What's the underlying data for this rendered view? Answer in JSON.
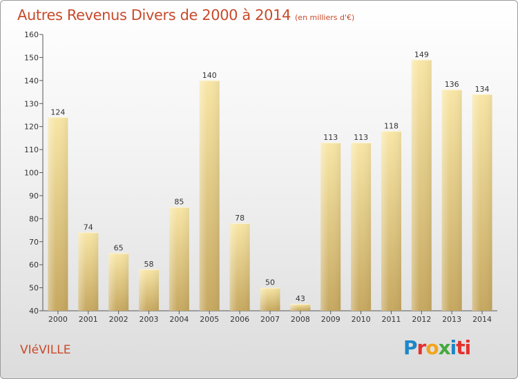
{
  "title": "Autres Revenus Divers de 2000 à 2014",
  "subtitle": "(en milliers d'€)",
  "commune": "VIéVILLE",
  "logo": [
    "P",
    "r",
    "o",
    "x",
    "i",
    "ti"
  ],
  "colors": {
    "bar_light": "#f7e3a0",
    "bar_dark": "#c9ab63",
    "title": "#c84a2a"
  },
  "chart_data": {
    "type": "bar",
    "title": "Autres Revenus Divers de 2000 à 2014",
    "categories": [
      "2000",
      "2001",
      "2002",
      "2003",
      "2004",
      "2005",
      "2006",
      "2007",
      "2008",
      "2009",
      "2010",
      "2011",
      "2012",
      "2013",
      "2014"
    ],
    "values": [
      124,
      74,
      65,
      58,
      85,
      140,
      78,
      50,
      43,
      113,
      113,
      118,
      149,
      136,
      134
    ],
    "ylim": [
      40,
      160
    ],
    "yticks": [
      40,
      50,
      60,
      70,
      80,
      90,
      100,
      110,
      120,
      130,
      140,
      150,
      160
    ],
    "grid": false,
    "legend": "none"
  }
}
